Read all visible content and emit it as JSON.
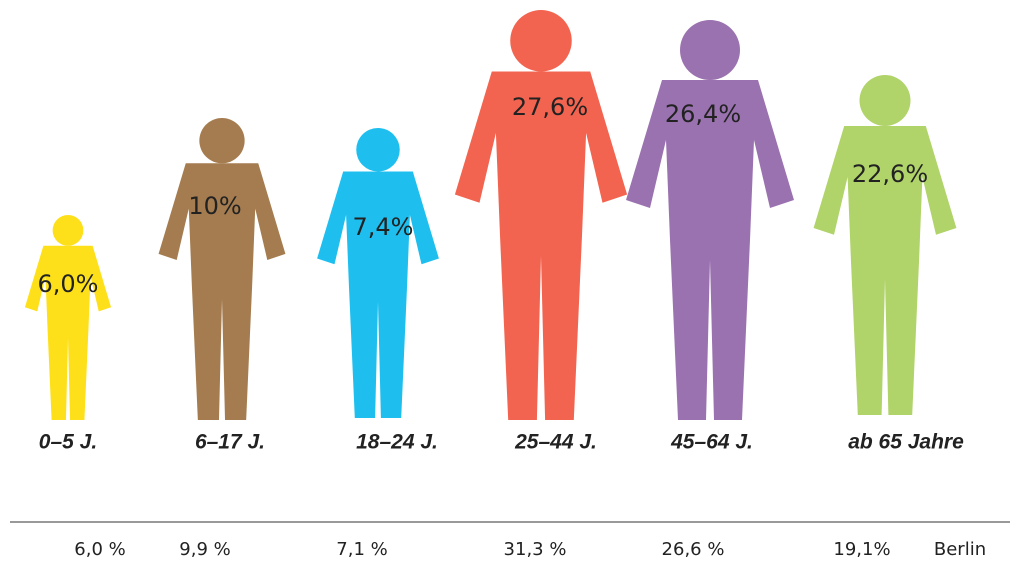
{
  "chart_data": {
    "type": "pictograph",
    "categories": [
      "0–5 J.",
      "6–17 J.",
      "18–24 J.",
      "25–44 J.",
      "45–64 J.",
      "ab 65 Jahre"
    ],
    "values": [
      6.0,
      10,
      7.4,
      27.6,
      26.4,
      22.6
    ],
    "value_labels": [
      "6,0%",
      "10%",
      "7,4%",
      "27,6%",
      "26,4%",
      "22,6%"
    ],
    "colors": [
      "#fde01a",
      "#a57c4f",
      "#1ebfef",
      "#f26450",
      "#9b72b0",
      "#b0d36a"
    ],
    "comparison": {
      "name": "Berlin",
      "values": [
        6.0,
        9.9,
        7.1,
        31.3,
        26.6,
        19.1
      ],
      "value_labels": [
        "6,0 %",
        "9,9 %",
        "7,1 %",
        "31,3 %",
        "26,6 %",
        "19,1%"
      ]
    }
  }
}
